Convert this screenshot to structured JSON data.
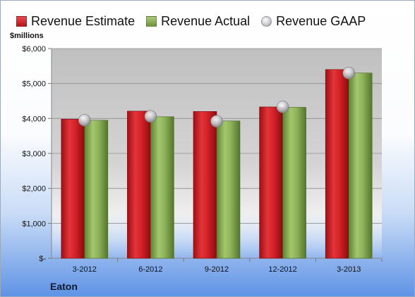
{
  "legend": [
    {
      "label": "Revenue Estimate",
      "color": "#d42228"
    },
    {
      "label": "Revenue Actual",
      "color": "#8db25a"
    },
    {
      "label": "Revenue GAAP",
      "color": "#c6c6cc"
    }
  ],
  "unit_label": "$millions",
  "company": "Eaton",
  "chart_data": {
    "type": "bar",
    "categories": [
      "3-2012",
      "6-2012",
      "9-2012",
      "12-2012",
      "3-2013"
    ],
    "series": [
      {
        "name": "Revenue Estimate",
        "type": "bar",
        "color": "#d42228",
        "values": [
          3980,
          4210,
          4200,
          4330,
          5400
        ]
      },
      {
        "name": "Revenue Actual",
        "type": "bar",
        "color": "#8db25a",
        "values": [
          3950,
          4050,
          3930,
          4320,
          5300
        ]
      },
      {
        "name": "Revenue GAAP",
        "type": "marker",
        "color": "#c6c6cc",
        "values": [
          3950,
          4060,
          3920,
          4330,
          5300
        ]
      }
    ],
    "ylim": [
      0,
      6000
    ],
    "yticks": [
      0,
      1000,
      2000,
      3000,
      4000,
      5000,
      6000
    ],
    "ytick_labels": [
      "$-",
      "$1,000",
      "$2,000",
      "$3,000",
      "$4,000",
      "$5,000",
      "$6,000"
    ],
    "grid": true,
    "legend_position": "top"
  }
}
